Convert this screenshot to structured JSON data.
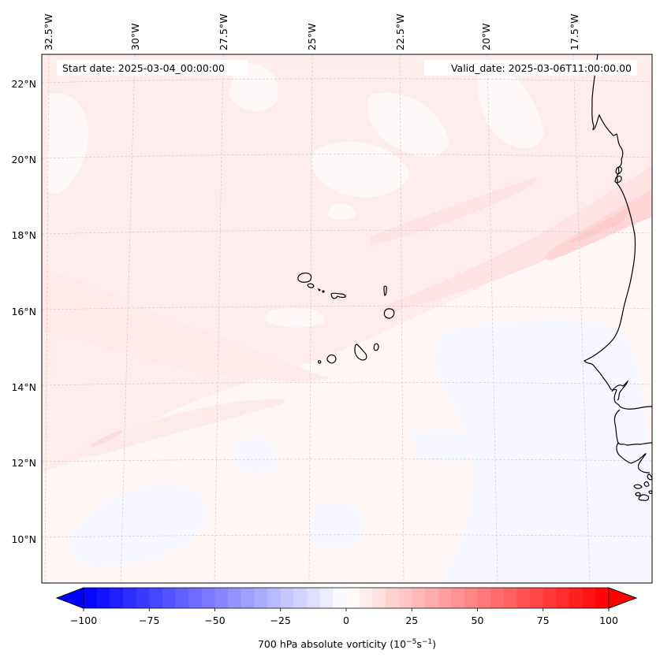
{
  "figure": {
    "start_date_label": "Start date: 2025-03-04_00:00:00",
    "valid_date_label": "Valid_date: 2025-03-06T11:00:00.00"
  },
  "map": {
    "projection": "lambert-conformal",
    "gridlines": true,
    "longitude_ticks": [
      {
        "value": -32.5,
        "label": "32.5°W"
      },
      {
        "value": -30,
        "label": "30°W"
      },
      {
        "value": -27.5,
        "label": "27.5°W"
      },
      {
        "value": -25,
        "label": "25°W"
      },
      {
        "value": -22.5,
        "label": "22.5°W"
      },
      {
        "value": -20,
        "label": "20°W"
      },
      {
        "value": -17.5,
        "label": "17.5°W"
      }
    ],
    "latitude_ticks": [
      {
        "value": 22,
        "label": "22°N"
      },
      {
        "value": 20,
        "label": "20°N"
      },
      {
        "value": 18,
        "label": "18°N"
      },
      {
        "value": 16,
        "label": "16°N"
      },
      {
        "value": 14,
        "label": "14°N"
      },
      {
        "value": 12,
        "label": "12°N"
      },
      {
        "value": 10,
        "label": "10°N"
      }
    ],
    "features": [
      "Cape Verde Islands",
      "West African coastline (Mauritania, Senegal, Gambia, Guinea-Bissau)"
    ]
  },
  "chart_data": {
    "type": "heatmap",
    "title": "",
    "variable": "700 hPa absolute vorticity",
    "units": "10^-5 s^-1",
    "colormap": "bwr",
    "colorbar": {
      "label_main": "700 hPa absolute vorticity (10",
      "label_exp1": "−5",
      "label_mid": "s",
      "label_exp2": "−1",
      "label_end": ")",
      "vmin": -100,
      "vmax": 100,
      "level_step": 5,
      "extend": "both",
      "ticks": [
        {
          "value": -100,
          "label": "−100"
        },
        {
          "value": -75,
          "label": "−75"
        },
        {
          "value": -50,
          "label": "−50"
        },
        {
          "value": -25,
          "label": "−25"
        },
        {
          "value": 0,
          "label": "0"
        },
        {
          "value": 25,
          "label": "25"
        },
        {
          "value": 50,
          "label": "50"
        },
        {
          "value": 75,
          "label": "75"
        },
        {
          "value": 100,
          "label": "100"
        }
      ]
    },
    "field_summary": {
      "background_value_range": [
        0,
        10
      ],
      "max_band_value_approx": 25,
      "max_band_location": "SW-NE band from ~16N 22W to ~19N 16W along Mauritanian coast",
      "weak_negative_regions": "south of 13N, values ~ -5 to 0"
    }
  }
}
